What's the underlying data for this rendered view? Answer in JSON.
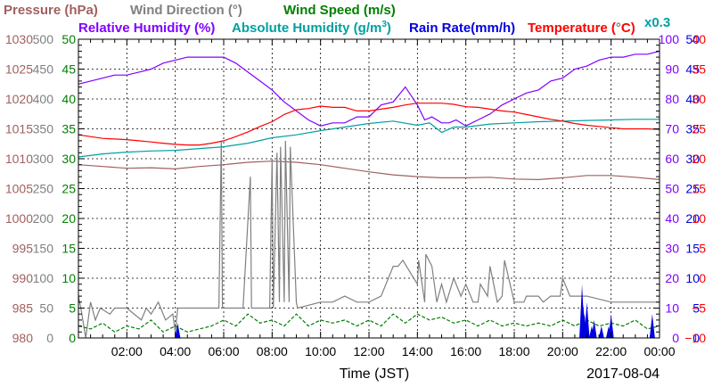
{
  "chart_data": {
    "type": "line",
    "xlabel": "Time (JST)",
    "date": "2017-08-04",
    "x_ticks": [
      "02:00",
      "04:00",
      "06:00",
      "08:00",
      "10:00",
      "12:00",
      "14:00",
      "16:00",
      "18:00",
      "20:00",
      "22:00",
      "00:00"
    ],
    "xlim_hours": [
      0,
      24
    ],
    "grid": true,
    "legend": [
      {
        "key": "pressure",
        "label": "Pressure (hPa)",
        "color": "#a0605f"
      },
      {
        "key": "wind_dir",
        "label": "Wind Direction (°)",
        "color": "#808080"
      },
      {
        "key": "wind_speed",
        "label": "Wind Speed (m/s)",
        "color": "#008000"
      },
      {
        "key": "rh",
        "label": "Relative Humidity (%)",
        "color": "#8000ff"
      },
      {
        "key": "abs_hum_pre",
        "label": "Absolute Humidity (g/m",
        "color": "#00a0a0"
      },
      {
        "key": "abs_hum_sup",
        "label": "3",
        "color": "#00a0a0"
      },
      {
        "key": "abs_hum_post",
        "label": ")",
        "color": "#00a0a0"
      },
      {
        "key": "rain",
        "label": "Rain Rate(mm/h)",
        "color": "#0000e0"
      },
      {
        "key": "temp_pre",
        "label": "Temperature (",
        "color": "#ff0000"
      },
      {
        "key": "temp_deg",
        "label": "°",
        "color": "#808080"
      },
      {
        "key": "temp_post",
        "label": "C)",
        "color": "#ff0000"
      },
      {
        "key": "factor",
        "label": "x0.3",
        "color": "#00a0a0"
      }
    ],
    "axes": [
      {
        "name": "Pressure (hPa)",
        "color": "#a0605f",
        "ylim": [
          980,
          1030
        ],
        "ticks": [
          "980",
          "985",
          "990",
          "995",
          "1000",
          "1005",
          "1010",
          "1015",
          "1020",
          "1025",
          "1030"
        ]
      },
      {
        "name": "Wind Direction (°)",
        "color": "#808080",
        "ylim": [
          0,
          500
        ],
        "ticks": [
          "0",
          "50",
          "100",
          "150",
          "200",
          "250",
          "300",
          "350",
          "400",
          "450",
          "500"
        ]
      },
      {
        "name": "Wind Speed (m/s)",
        "color": "#008000",
        "ylim": [
          0,
          50
        ],
        "ticks": [
          "0",
          "5",
          "10",
          "15",
          "20",
          "25",
          "30",
          "35",
          "40",
          "45",
          "50"
        ]
      },
      {
        "name": "Relative Humidity (%)",
        "color": "#8000ff",
        "ylim": [
          0,
          100
        ],
        "ticks": [
          "0",
          "10",
          "20",
          "30",
          "40",
          "50",
          "60",
          "70",
          "80",
          "90",
          "100"
        ]
      },
      {
        "name": "Rain Rate(mm/h)",
        "color": "#0000e0",
        "ylim": [
          0,
          50
        ],
        "ticks": [
          "0",
          "5",
          "10",
          "15",
          "20",
          "25",
          "30",
          "35",
          "40",
          "45",
          "50"
        ]
      },
      {
        "name": "Temperature (°C)",
        "color": "#ff0000",
        "ylim": [
          -10,
          40
        ],
        "ticks": [
          "−10",
          "−5",
          "0",
          "5",
          "10",
          "15",
          "20",
          "25",
          "30",
          "35",
          "40"
        ]
      }
    ],
    "series": [
      {
        "key": "pressure",
        "color": "#a0605f",
        "axis": 0,
        "x": [
          0,
          1,
          2,
          3,
          4,
          5,
          6,
          7,
          8,
          9,
          10,
          11,
          12,
          13,
          14,
          15,
          16,
          17,
          18,
          19,
          20,
          21,
          22,
          23,
          24
        ],
        "y": [
          1009,
          1008.7,
          1008.4,
          1008.5,
          1008.3,
          1008.7,
          1009.0,
          1009.4,
          1009.6,
          1009.4,
          1009.0,
          1008.4,
          1007.8,
          1007.3,
          1007.0,
          1006.8,
          1006.8,
          1006.9,
          1006.6,
          1006.5,
          1006.8,
          1007.2,
          1007.2,
          1006.9,
          1006.5
        ]
      },
      {
        "key": "wind_dir",
        "color": "#808080",
        "axis": 1,
        "x": [
          0,
          0.1,
          0.3,
          0.5,
          0.7,
          0.9,
          1.3,
          1.5,
          2.0,
          2.6,
          2.8,
          3.0,
          3.3,
          3.6,
          3.9,
          4.0,
          4.1,
          5.8,
          5.9,
          5.95,
          6.4,
          6.8,
          7.1,
          7.15,
          7.2,
          7.6,
          7.9,
          8.0,
          8.05,
          8.2,
          8.3,
          8.35,
          8.5,
          8.55,
          8.7,
          8.75,
          9.0,
          9.05,
          10.0,
          10.5,
          11.0,
          11.5,
          12.0,
          12.5,
          13.0,
          13.2,
          13.4,
          14.0,
          14.05,
          14.3,
          14.35,
          14.6,
          14.8,
          15.0,
          15.2,
          15.5,
          15.8,
          16.0,
          16.3,
          16.5,
          16.6,
          16.9,
          17.0,
          17.3,
          17.5,
          17.6,
          18.0,
          18.4,
          18.5,
          18.7,
          19.0,
          19.2,
          19.5,
          19.9,
          20.0,
          20.3,
          21.0,
          22.0,
          22.5,
          23.0,
          24
        ],
        "y": [
          70,
          50,
          0,
          60,
          30,
          50,
          40,
          50,
          50,
          30,
          50,
          40,
          60,
          30,
          40,
          10,
          50,
          50,
          330,
          50,
          50,
          50,
          270,
          50,
          50,
          50,
          50,
          300,
          50,
          310,
          60,
          320,
          60,
          330,
          60,
          320,
          60,
          50,
          60,
          60,
          70,
          60,
          60,
          70,
          120,
          120,
          130,
          90,
          130,
          60,
          140,
          120,
          60,
          90,
          60,
          100,
          70,
          90,
          60,
          60,
          90,
          70,
          120,
          60,
          70,
          130,
          60,
          60,
          70,
          70,
          70,
          60,
          70,
          70,
          100,
          70,
          70,
          60,
          60,
          60,
          60
        ]
      },
      {
        "key": "wind_speed",
        "color": "#008000",
        "axis": 2,
        "dashed": true,
        "x": [
          0,
          0.5,
          1,
          1.5,
          2,
          2.5,
          3,
          3.5,
          4,
          4.5,
          5,
          5.5,
          6,
          6.5,
          7,
          7.5,
          8,
          8.5,
          9,
          9.5,
          10,
          10.5,
          11,
          11.5,
          12,
          12.5,
          13,
          13.5,
          14,
          14.5,
          15,
          15.5,
          16,
          16.5,
          17,
          17.5,
          18,
          18.5,
          19,
          19.5,
          20,
          20.5,
          21,
          21.5,
          22,
          22.5,
          23,
          23.5,
          24
        ],
        "y": [
          2,
          1.5,
          2.5,
          1,
          2,
          1.5,
          3,
          1,
          2,
          1,
          1.5,
          2,
          3,
          2,
          4,
          2.5,
          3,
          2,
          4,
          2,
          3,
          2.5,
          3,
          2,
          3,
          2,
          4,
          2.5,
          4,
          3,
          3.5,
          2.5,
          3,
          2,
          3,
          2,
          2.5,
          2,
          2.5,
          2,
          3,
          2,
          3,
          2,
          2.5,
          2,
          3,
          1.5,
          2
        ]
      },
      {
        "key": "rh",
        "color": "#8000ff",
        "axis": 3,
        "x": [
          0,
          0.5,
          1,
          1.5,
          2,
          2.5,
          3,
          3.5,
          4,
          4.5,
          5,
          5.5,
          6,
          6.5,
          7,
          7.5,
          8,
          8.5,
          9,
          9.5,
          10,
          10.5,
          11,
          11.5,
          12,
          12.5,
          13,
          13.5,
          14,
          14.3,
          14.6,
          15,
          15.3,
          15.6,
          16,
          16.5,
          17,
          17.5,
          18,
          18.5,
          19,
          19.5,
          20,
          20.5,
          21,
          21.5,
          22,
          22.5,
          23,
          23.5,
          24
        ],
        "y": [
          85,
          86,
          87,
          88,
          88,
          89,
          90,
          92,
          93,
          94,
          94,
          94,
          94,
          92,
          89,
          86,
          83,
          79,
          76,
          73,
          71,
          72,
          72,
          74,
          74,
          78,
          79,
          84,
          78,
          73,
          74,
          72,
          72,
          73,
          71,
          73,
          75,
          78,
          80,
          82,
          83,
          86,
          87,
          90,
          91,
          93,
          94,
          94,
          95,
          95,
          96
        ]
      },
      {
        "key": "abs_hum",
        "color": "#00a0a0",
        "axis": 4,
        "x": [
          0,
          1,
          2,
          3,
          4,
          5,
          6,
          7,
          8,
          9,
          10,
          11,
          12,
          13,
          14,
          14.5,
          15,
          15.5,
          16,
          17,
          18,
          19,
          20,
          21,
          22,
          23,
          24
        ],
        "y": [
          30.3,
          30.8,
          31.1,
          31.3,
          31.4,
          31.7,
          32.0,
          32.6,
          33.5,
          34.0,
          34.7,
          35.3,
          35.9,
          36.3,
          35.6,
          36.0,
          34.4,
          35.3,
          35.3,
          35.8,
          36.0,
          36.2,
          36.3,
          36.4,
          36.5,
          36.6,
          36.6
        ]
      },
      {
        "key": "rain",
        "color": "#0000e0",
        "axis": 4,
        "bars": true,
        "x": [
          4.1,
          20.8,
          20.85,
          20.9,
          21.0,
          21.2,
          21.3,
          21.6,
          21.9,
          22.0,
          23.7
        ],
        "y": [
          2.5,
          9,
          5.5,
          4,
          6,
          2,
          3,
          2,
          2,
          4,
          4
        ]
      },
      {
        "key": "temp",
        "color": "#ff0000",
        "axis": 5,
        "x": [
          0,
          0.5,
          1,
          1.5,
          2,
          2.5,
          3,
          3.5,
          4,
          4.5,
          5,
          5.5,
          6,
          6.5,
          7,
          7.5,
          8,
          8.5,
          9,
          9.5,
          10,
          10.5,
          11,
          11.5,
          12,
          12.5,
          13,
          13.5,
          14,
          14.5,
          15,
          15.5,
          16,
          16.5,
          17,
          17.5,
          18,
          18.5,
          19,
          19.5,
          20,
          20.5,
          21,
          21.5,
          22,
          22.5,
          23,
          23.5,
          24
        ],
        "y": [
          24.0,
          23.7,
          23.4,
          23.3,
          23.2,
          23.0,
          22.8,
          22.6,
          22.4,
          22.3,
          22.3,
          22.6,
          23.0,
          23.7,
          24.5,
          25.4,
          26.2,
          27.4,
          28.2,
          28.4,
          28.8,
          28.6,
          28.6,
          28.0,
          28.0,
          28.3,
          28.6,
          29.0,
          29.3,
          29.3,
          29.3,
          29.1,
          28.7,
          28.6,
          28.3,
          28.0,
          27.8,
          27.4,
          27.0,
          26.6,
          26.3,
          25.9,
          25.6,
          25.4,
          25.2,
          25.0,
          25.0,
          25.0,
          24.9
        ]
      }
    ]
  }
}
